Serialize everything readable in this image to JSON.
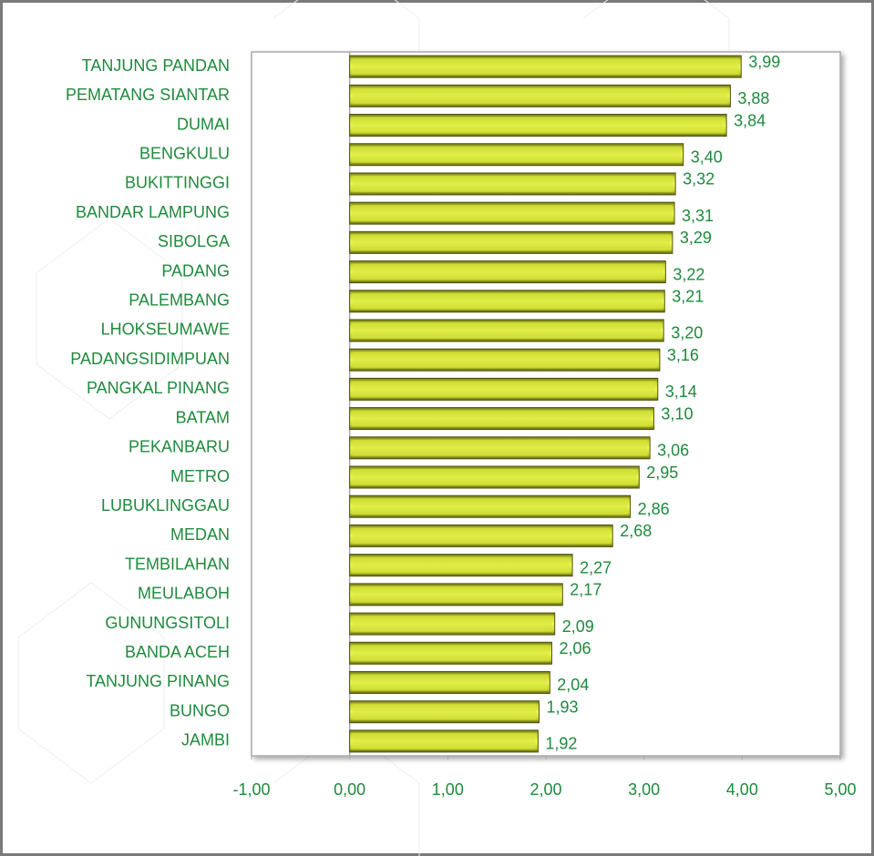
{
  "chart_data": {
    "type": "barh",
    "categories": [
      "TANJUNG PANDAN",
      "PEMATANG SIANTAR",
      "DUMAI",
      "BENGKULU",
      "BUKITTINGGI",
      "BANDAR LAMPUNG",
      "SIBOLGA",
      "PADANG",
      "PALEMBANG",
      "LHOKSEUMAWE",
      "PADANGSIDIMPUAN",
      "PANGKAL PINANG",
      "BATAM",
      "PEKANBARU",
      "METRO",
      "LUBUKLINGGAU",
      "MEDAN",
      "TEMBILAHAN",
      "MEULABOH",
      "GUNUNGSITOLI",
      "BANDA ACEH",
      "TANJUNG PINANG",
      "BUNGO",
      "JAMBI"
    ],
    "values": [
      3.99,
      3.88,
      3.84,
      3.4,
      3.32,
      3.31,
      3.29,
      3.22,
      3.21,
      3.2,
      3.16,
      3.14,
      3.1,
      3.06,
      2.95,
      2.86,
      2.68,
      2.27,
      2.17,
      2.09,
      2.06,
      2.04,
      1.93,
      1.92
    ],
    "value_labels": [
      "3,99",
      "3,88",
      "3,84",
      "3,40",
      "3,32",
      "3,31",
      "3,29",
      "3,22",
      "3,21",
      "3,20",
      "3,16",
      "3,14",
      "3,10",
      "3,06",
      "2,95",
      "2,86",
      "2,68",
      "2,27",
      "2,17",
      "2,09",
      "2,06",
      "2,04",
      "1,93",
      "1,92"
    ],
    "color": "#d6e63a",
    "xlim": [
      -1,
      5
    ],
    "xticks": [
      {
        "value": -1,
        "label": "-1,00"
      },
      {
        "value": 0,
        "label": "0,00"
      },
      {
        "value": 1,
        "label": "1,00"
      },
      {
        "value": 2,
        "label": "2,00"
      },
      {
        "value": 3,
        "label": "3,00"
      },
      {
        "value": 4,
        "label": "4,00"
      },
      {
        "value": 5,
        "label": "5,00"
      }
    ]
  }
}
